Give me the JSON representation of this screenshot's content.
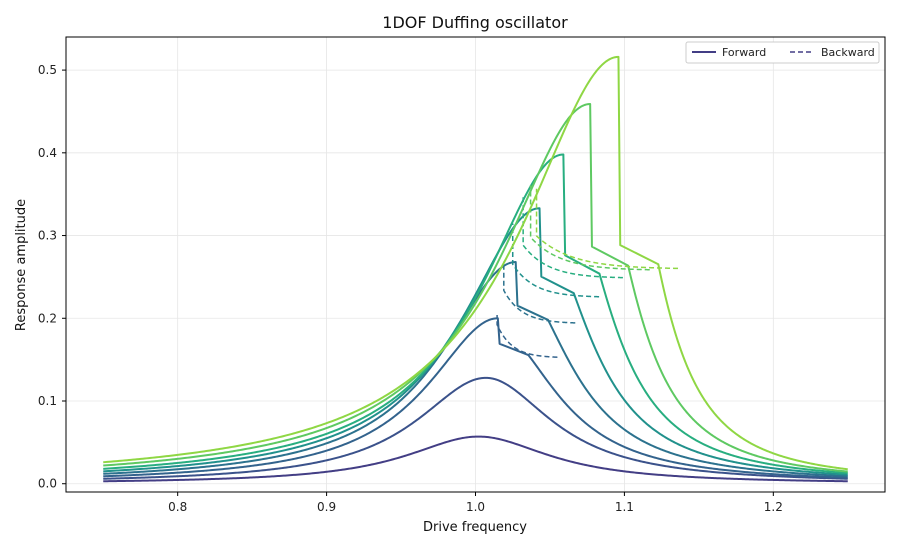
{
  "chart_data": {
    "type": "line",
    "title": "1DOF Duffing oscillator",
    "xlabel": "Drive frequency",
    "ylabel": "Response amplitude",
    "xlim": [
      0.725,
      1.275
    ],
    "ylim": [
      -0.01,
      0.54
    ],
    "xticks": [
      "0.8",
      "0.9",
      "1.0",
      "1.1",
      "1.2"
    ],
    "yticks": [
      "0.0",
      "0.1",
      "0.2",
      "0.3",
      "0.4",
      "0.5"
    ],
    "grid": true,
    "legend_placement": "top-right",
    "legend": [
      {
        "label": "Forward",
        "style": "solid"
      },
      {
        "label": "Backward",
        "style": "dashed"
      }
    ],
    "x_range": [
      0.75,
      1.25
    ],
    "curves": [
      {
        "color": "#433e85",
        "peak_x": 1.002,
        "peak_y": 0.057,
        "jump_back": null,
        "edge_left": 0.003,
        "edge_right": 0.003
      },
      {
        "color": "#3b528b",
        "peak_x": 1.007,
        "peak_y": 0.128,
        "jump_back": null,
        "edge_left": 0.006,
        "edge_right": 0.006
      },
      {
        "color": "#33638d",
        "peak_x": 1.015,
        "peak_y": 0.2,
        "jump_back": 1.0145,
        "edge_left": 0.009,
        "edge_right": 0.008
      },
      {
        "color": "#2c728e",
        "peak_x": 1.027,
        "peak_y": 0.268,
        "jump_back": 1.019,
        "edge_left": 0.012,
        "edge_right": 0.01
      },
      {
        "color": "#21918c",
        "peak_x": 1.043,
        "peak_y": 0.333,
        "jump_back": 1.025,
        "edge_left": 0.015,
        "edge_right": 0.012
      },
      {
        "color": "#28ae80",
        "peak_x": 1.059,
        "peak_y": 0.398,
        "jump_back": 1.032,
        "edge_left": 0.018,
        "edge_right": 0.014
      },
      {
        "color": "#5ec962",
        "peak_x": 1.077,
        "peak_y": 0.459,
        "jump_back": 1.037,
        "edge_left": 0.022,
        "edge_right": 0.016
      },
      {
        "color": "#8fd744",
        "peak_x": 1.096,
        "peak_y": 0.516,
        "jump_back": 1.041,
        "edge_left": 0.026,
        "edge_right": 0.019
      }
    ]
  }
}
